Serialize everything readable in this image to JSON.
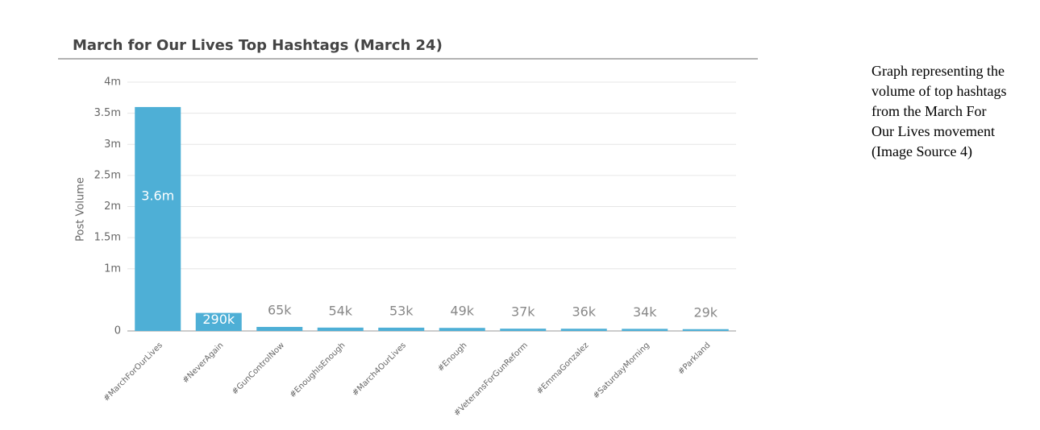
{
  "chart_data": {
    "type": "bar",
    "title": "March for Our Lives Top Hashtags (March 24)",
    "y_label": "Post Volume",
    "categories": [
      "#MarchForOurLives",
      "#NeverAgain",
      "#GunControlNow",
      "#EnoughIsEnough",
      "#March4OurLives",
      "#Enough",
      "#VeteransForGunReform",
      "#EmmaGonzalez",
      "#SaturdayMorning",
      "#Parkland"
    ],
    "values": [
      3600000,
      290000,
      65000,
      54000,
      53000,
      49000,
      37000,
      36000,
      34000,
      29000
    ],
    "value_labels": [
      "3.6m",
      "290k",
      "65k",
      "54k",
      "53k",
      "49k",
      "37k",
      "36k",
      "34k",
      "29k"
    ],
    "color": "#4eafd6",
    "ylim": [
      0,
      4000000
    ],
    "yticks": [
      0,
      {
        "value": 1000000,
        "label": "1m"
      },
      {
        "value": 1500000,
        "label": "1.5m"
      },
      {
        "value": 2000000,
        "label": "2m"
      },
      {
        "value": 2500000,
        "label": "2.5m"
      },
      {
        "value": 3000000,
        "label": "3m"
      },
      {
        "value": 3500000,
        "label": "3.5m"
      },
      {
        "value": 4000000,
        "label": "4m"
      }
    ],
    "grid": true
  },
  "caption": [
    "Graph representing the",
    "volume of top hashtags",
    "from the March For",
    "Our Lives movement",
    "(Image Source 4)"
  ]
}
